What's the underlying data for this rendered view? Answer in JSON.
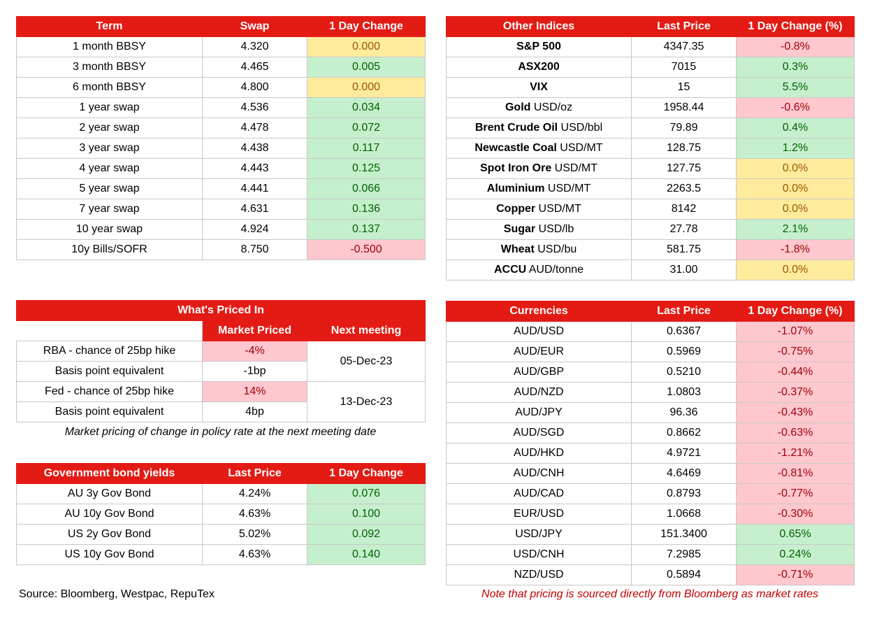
{
  "swaps": {
    "headers": [
      "Term",
      "Swap",
      "1 Day Change"
    ],
    "rows": [
      {
        "term": "1 month BBSY",
        "swap": "4.320",
        "change": "0.000",
        "status": "zero"
      },
      {
        "term": "3 month BBSY",
        "swap": "4.465",
        "change": "0.005",
        "status": "pos"
      },
      {
        "term": "6 month BBSY",
        "swap": "4.800",
        "change": "0.000",
        "status": "zero"
      },
      {
        "term": "1 year swap",
        "swap": "4.536",
        "change": "0.034",
        "status": "pos"
      },
      {
        "term": "2 year swap",
        "swap": "4.478",
        "change": "0.072",
        "status": "pos"
      },
      {
        "term": "3 year swap",
        "swap": "4.438",
        "change": "0.117",
        "status": "pos"
      },
      {
        "term": "4 year swap",
        "swap": "4.443",
        "change": "0.125",
        "status": "pos"
      },
      {
        "term": "5 year swap",
        "swap": "4.441",
        "change": "0.066",
        "status": "pos"
      },
      {
        "term": "7 year swap",
        "swap": "4.631",
        "change": "0.136",
        "status": "pos"
      },
      {
        "term": "10 year swap",
        "swap": "4.924",
        "change": "0.137",
        "status": "pos"
      },
      {
        "term": "10y Bills/SOFR",
        "swap": "8.750",
        "change": "-0.500",
        "status": "neg"
      }
    ]
  },
  "indices": {
    "headers": [
      "Other Indices",
      "Last Price",
      "1 Day Change (%)"
    ],
    "rows": [
      {
        "name": "S&P 500",
        "unit": "",
        "price": "4347.35",
        "change": "-0.8%",
        "status": "neg"
      },
      {
        "name": "ASX200",
        "unit": "",
        "price": "7015",
        "change": "0.3%",
        "status": "pos"
      },
      {
        "name": "VIX",
        "unit": "",
        "price": "15",
        "change": "5.5%",
        "status": "pos"
      },
      {
        "name": "Gold",
        "unit": " USD/oz",
        "price": "1958.44",
        "change": "-0.6%",
        "status": "neg"
      },
      {
        "name": "Brent Crude Oil",
        "unit": " USD/bbl",
        "price": "79.89",
        "change": "0.4%",
        "status": "pos"
      },
      {
        "name": "Newcastle Coal",
        "unit": " USD/MT",
        "price": "128.75",
        "change": "1.2%",
        "status": "pos"
      },
      {
        "name": "Spot Iron Ore",
        "unit": " USD/MT",
        "price": "127.75",
        "change": "0.0%",
        "status": "zero"
      },
      {
        "name": "Aluminium",
        "unit": " USD/MT",
        "price": "2263.5",
        "change": "0.0%",
        "status": "zero"
      },
      {
        "name": "Copper",
        "unit": " USD/MT",
        "price": "8142",
        "change": "0.0%",
        "status": "zero"
      },
      {
        "name": "Sugar",
        "unit": " USD/lb",
        "price": "27.78",
        "change": "2.1%",
        "status": "pos"
      },
      {
        "name": "Wheat",
        "unit": " USD/bu",
        "price": "581.75",
        "change": "-1.8%",
        "status": "neg"
      },
      {
        "name": "ACCU",
        "unit": " AUD/tonne",
        "price": "31.00",
        "change": "0.0%",
        "status": "zero"
      }
    ]
  },
  "priced": {
    "title": "What's Priced In",
    "col_market": "Market Priced",
    "col_next": "Next meeting",
    "rba_label": "RBA - chance of 25bp hike",
    "rba_value": "-4%",
    "rba_bp_label": "Basis point equivalent",
    "rba_bp": "-1bp",
    "rba_date": "05-Dec-23",
    "fed_label": "Fed - chance of 25bp hike",
    "fed_value": "14%",
    "fed_bp_label": "Basis point equivalent",
    "fed_bp": "4bp",
    "fed_date": "13-Dec-23",
    "note": "Market pricing of change in policy rate at the next meeting date"
  },
  "bonds": {
    "headers": [
      "Government bond yields",
      "Last Price",
      "1 Day Change"
    ],
    "rows": [
      {
        "name": "AU 3y Gov Bond",
        "price": "4.24%",
        "change": "0.076",
        "status": "pos"
      },
      {
        "name": "AU 10y Gov Bond",
        "price": "4.63%",
        "change": "0.100",
        "status": "pos"
      },
      {
        "name": "US 2y Gov Bond",
        "price": "5.02%",
        "change": "0.092",
        "status": "pos"
      },
      {
        "name": "US 10y Gov Bond",
        "price": "4.63%",
        "change": "0.140",
        "status": "pos"
      }
    ]
  },
  "currencies": {
    "headers": [
      "Currencies",
      "Last Price",
      "1 Day Change (%)"
    ],
    "rows": [
      {
        "pair": "AUD/USD",
        "price": "0.6367",
        "change": "-1.07%",
        "status": "neg"
      },
      {
        "pair": "AUD/EUR",
        "price": "0.5969",
        "change": "-0.75%",
        "status": "neg"
      },
      {
        "pair": "AUD/GBP",
        "price": "0.5210",
        "change": "-0.44%",
        "status": "neg"
      },
      {
        "pair": "AUD/NZD",
        "price": "1.0803",
        "change": "-0.37%",
        "status": "neg"
      },
      {
        "pair": "AUD/JPY",
        "price": "96.36",
        "change": "-0.43%",
        "status": "neg"
      },
      {
        "pair": "AUD/SGD",
        "price": "0.8662",
        "change": "-0.63%",
        "status": "neg"
      },
      {
        "pair": "AUD/HKD",
        "price": "4.9721",
        "change": "-1.21%",
        "status": "neg"
      },
      {
        "pair": "AUD/CNH",
        "price": "4.6469",
        "change": "-0.81%",
        "status": "neg"
      },
      {
        "pair": "AUD/CAD",
        "price": "0.8793",
        "change": "-0.77%",
        "status": "neg"
      },
      {
        "pair": "EUR/USD",
        "price": "1.0668",
        "change": "-0.30%",
        "status": "neg"
      },
      {
        "pair": "USD/JPY",
        "price": "151.3400",
        "change": "0.65%",
        "status": "pos"
      },
      {
        "pair": "USD/CNH",
        "price": "7.2985",
        "change": "0.24%",
        "status": "pos"
      },
      {
        "pair": "NZD/USD",
        "price": "0.5894",
        "change": "-0.71%",
        "status": "neg"
      }
    ]
  },
  "footer": {
    "source": "Source: Bloomberg, Westpac, RepuTex",
    "note": "Note that pricing is sourced directly from Bloomberg as market rates"
  },
  "colors": {
    "header_red": "#e31b14",
    "positive": "#c6efce",
    "negative": "#ffc7ce",
    "neutral": "#ffeb9c"
  }
}
